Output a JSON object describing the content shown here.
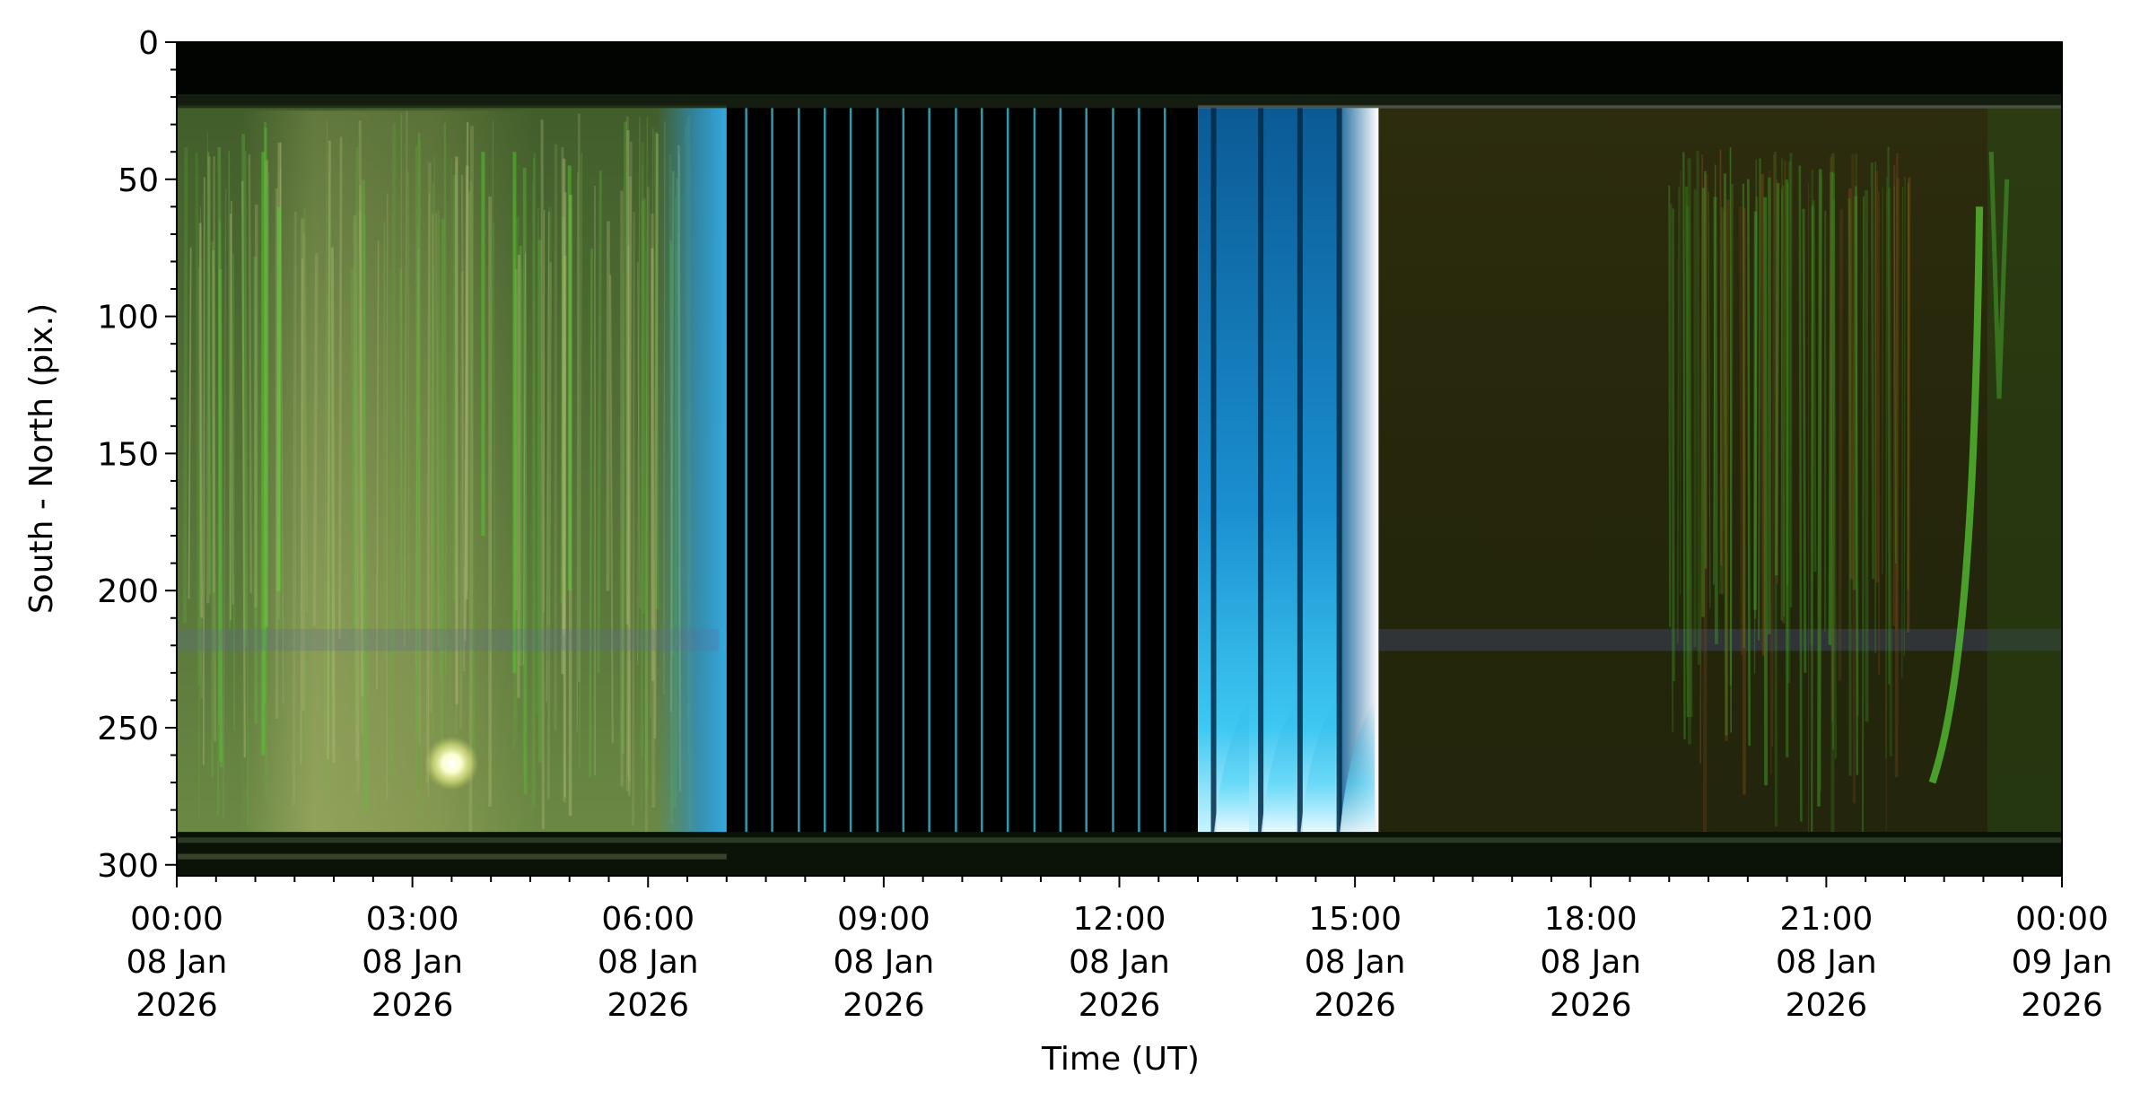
{
  "chart_data": {
    "type": "heatmap",
    "title": "",
    "xlabel": "Time (UT)",
    "ylabel": "South - North (pix.)",
    "x_ticks": [
      {
        "hour": 0,
        "lines": [
          "00:00",
          "08 Jan",
          "2026"
        ]
      },
      {
        "hour": 3,
        "lines": [
          "03:00",
          "08 Jan",
          "2026"
        ]
      },
      {
        "hour": 6,
        "lines": [
          "06:00",
          "08 Jan",
          "2026"
        ]
      },
      {
        "hour": 9,
        "lines": [
          "09:00",
          "08 Jan",
          "2026"
        ]
      },
      {
        "hour": 12,
        "lines": [
          "12:00",
          "08 Jan",
          "2026"
        ]
      },
      {
        "hour": 15,
        "lines": [
          "15:00",
          "08 Jan",
          "2026"
        ]
      },
      {
        "hour": 18,
        "lines": [
          "18:00",
          "08 Jan",
          "2026"
        ]
      },
      {
        "hour": 21,
        "lines": [
          "21:00",
          "08 Jan",
          "2026"
        ]
      },
      {
        "hour": 24,
        "lines": [
          "00:00",
          "09 Jan",
          "2026"
        ]
      }
    ],
    "y_ticks": [
      0,
      50,
      100,
      150,
      200,
      250,
      300
    ],
    "xlim_hours": [
      0,
      24
    ],
    "ylim": [
      0,
      304
    ],
    "y_inverted": true,
    "grid": false,
    "regions": [
      {
        "start_hour": 0,
        "end_hour": 7.0,
        "description": "green-yellow auroral emission",
        "color": "#5f7a3c"
      },
      {
        "start_hour": 6.5,
        "end_hour": 7.0,
        "description": "twilight blue",
        "color": "#1f86b8"
      },
      {
        "start_hour": 7.0,
        "end_hour": 13.0,
        "description": "daylight gap, dark with sparse cyan exposures",
        "color": "#000000"
      },
      {
        "start_hour": 13.0,
        "end_hour": 15.3,
        "description": "twilight blue",
        "color": "#0d7fc0"
      },
      {
        "start_hour": 15.3,
        "end_hour": 24,
        "description": "dark olive with green aurora",
        "color": "#2a2a0c"
      }
    ],
    "daylight_exposure_hours": [
      7.25,
      7.58,
      7.92,
      8.25,
      8.58,
      8.92,
      9.25,
      9.58,
      9.92,
      10.25,
      10.58,
      10.92,
      11.25,
      11.58,
      11.92,
      12.25,
      12.58
    ],
    "bright_spot": {
      "hour": 3.5,
      "pixel": 263
    }
  }
}
